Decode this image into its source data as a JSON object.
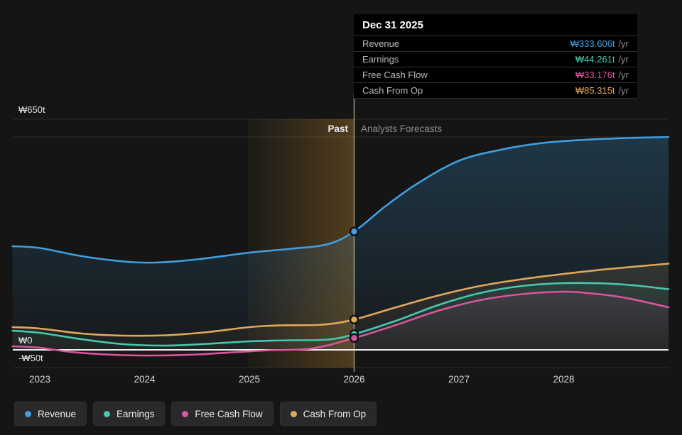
{
  "colors": {
    "revenue": "#3f9fe0",
    "earnings": "#46c8b1",
    "free_cash_flow": "#d9569c",
    "cash_from_op": "#e0a95c",
    "background": "#151515",
    "zero_line": "#efefef",
    "band": "#a5762a",
    "divider": "#ded2b4"
  },
  "annotations": {
    "past": "Past",
    "forecast": "Analysts Forecasts"
  },
  "tooltip": {
    "title": "Dec 31 2025",
    "rows": [
      {
        "label": "Revenue",
        "value": "₩333.606t",
        "suffix": "/yr",
        "color_key": "revenue"
      },
      {
        "label": "Earnings",
        "value": "₩44.261t",
        "suffix": "/yr",
        "color_key": "earnings"
      },
      {
        "label": "Free Cash Flow",
        "value": "₩33.176t",
        "suffix": "/yr",
        "color_key": "free_cash_flow"
      },
      {
        "label": "Cash From Op",
        "value": "₩85.315t",
        "suffix": "/yr",
        "color_key": "cash_from_op"
      }
    ]
  },
  "legend": [
    {
      "label": "Revenue",
      "color_key": "revenue"
    },
    {
      "label": "Earnings",
      "color_key": "earnings"
    },
    {
      "label": "Free Cash Flow",
      "color_key": "free_cash_flow"
    },
    {
      "label": "Cash From Op",
      "color_key": "cash_from_op"
    }
  ],
  "chart_data": {
    "type": "area",
    "title": "",
    "unit": "₩ trillions per year",
    "xlim": [
      2022.74,
      2029
    ],
    "ylim": [
      -50,
      650
    ],
    "x_ticks": [
      2023,
      2024,
      2025,
      2026,
      2027,
      2028
    ],
    "y_gridlines": [
      650,
      600,
      0,
      -50
    ],
    "y_tick_labels": [
      {
        "value": 650,
        "text": "₩650t"
      },
      {
        "value": 0,
        "text": "₩0"
      },
      {
        "value": -50,
        "text": "-₩50t"
      }
    ],
    "divider_x": 2026,
    "divider_date": "Dec 31 2025",
    "past_band": [
      2025,
      2026
    ],
    "series": [
      {
        "name": "Revenue",
        "key": "revenue",
        "marker_value": 333.606,
        "points": [
          [
            2022.74,
            292
          ],
          [
            2023,
            287
          ],
          [
            2023.4,
            264
          ],
          [
            2023.8,
            249
          ],
          [
            2024.1,
            246
          ],
          [
            2024.5,
            255
          ],
          [
            2025,
            274
          ],
          [
            2025.4,
            285
          ],
          [
            2025.75,
            298
          ],
          [
            2026,
            333.606
          ],
          [
            2026.3,
            405
          ],
          [
            2026.6,
            468
          ],
          [
            2027,
            533
          ],
          [
            2027.4,
            564
          ],
          [
            2027.8,
            583
          ],
          [
            2028.2,
            592
          ],
          [
            2028.6,
            597
          ],
          [
            2029,
            600
          ]
        ]
      },
      {
        "name": "Cash From Op",
        "key": "cash_from_op",
        "marker_value": 85.315,
        "points": [
          [
            2022.74,
            64
          ],
          [
            2023,
            60
          ],
          [
            2023.4,
            46
          ],
          [
            2023.8,
            40
          ],
          [
            2024.2,
            41
          ],
          [
            2024.6,
            50
          ],
          [
            2025,
            64
          ],
          [
            2025.3,
            69
          ],
          [
            2025.7,
            71
          ],
          [
            2026,
            85.315
          ],
          [
            2026.4,
            120
          ],
          [
            2026.8,
            153
          ],
          [
            2027.2,
            180
          ],
          [
            2027.6,
            199
          ],
          [
            2028,
            214
          ],
          [
            2028.4,
            227
          ],
          [
            2029,
            243
          ]
        ]
      },
      {
        "name": "Earnings",
        "key": "earnings",
        "marker_value": 44.261,
        "points": [
          [
            2022.74,
            54
          ],
          [
            2023,
            48
          ],
          [
            2023.4,
            30
          ],
          [
            2023.8,
            16
          ],
          [
            2024.2,
            12
          ],
          [
            2024.6,
            17
          ],
          [
            2025,
            24
          ],
          [
            2025.4,
            27
          ],
          [
            2025.75,
            29
          ],
          [
            2026,
            44.261
          ],
          [
            2026.4,
            82
          ],
          [
            2026.8,
            126
          ],
          [
            2027.2,
            160
          ],
          [
            2027.6,
            180
          ],
          [
            2028,
            188
          ],
          [
            2028.4,
            187
          ],
          [
            2028.7,
            181
          ],
          [
            2029,
            171
          ]
        ]
      },
      {
        "name": "Free Cash Flow",
        "key": "free_cash_flow",
        "marker_value": 33.176,
        "points": [
          [
            2022.74,
            10
          ],
          [
            2023,
            6
          ],
          [
            2023.3,
            -6
          ],
          [
            2023.7,
            -14
          ],
          [
            2024.1,
            -16
          ],
          [
            2024.5,
            -13
          ],
          [
            2024.9,
            -6
          ],
          [
            2025.2,
            -1
          ],
          [
            2025.6,
            4
          ],
          [
            2026,
            33.176
          ],
          [
            2026.4,
            70
          ],
          [
            2026.8,
            110
          ],
          [
            2027.2,
            140
          ],
          [
            2027.6,
            157
          ],
          [
            2028,
            164
          ],
          [
            2028.3,
            158
          ],
          [
            2028.6,
            146
          ],
          [
            2029,
            120
          ]
        ]
      }
    ]
  }
}
